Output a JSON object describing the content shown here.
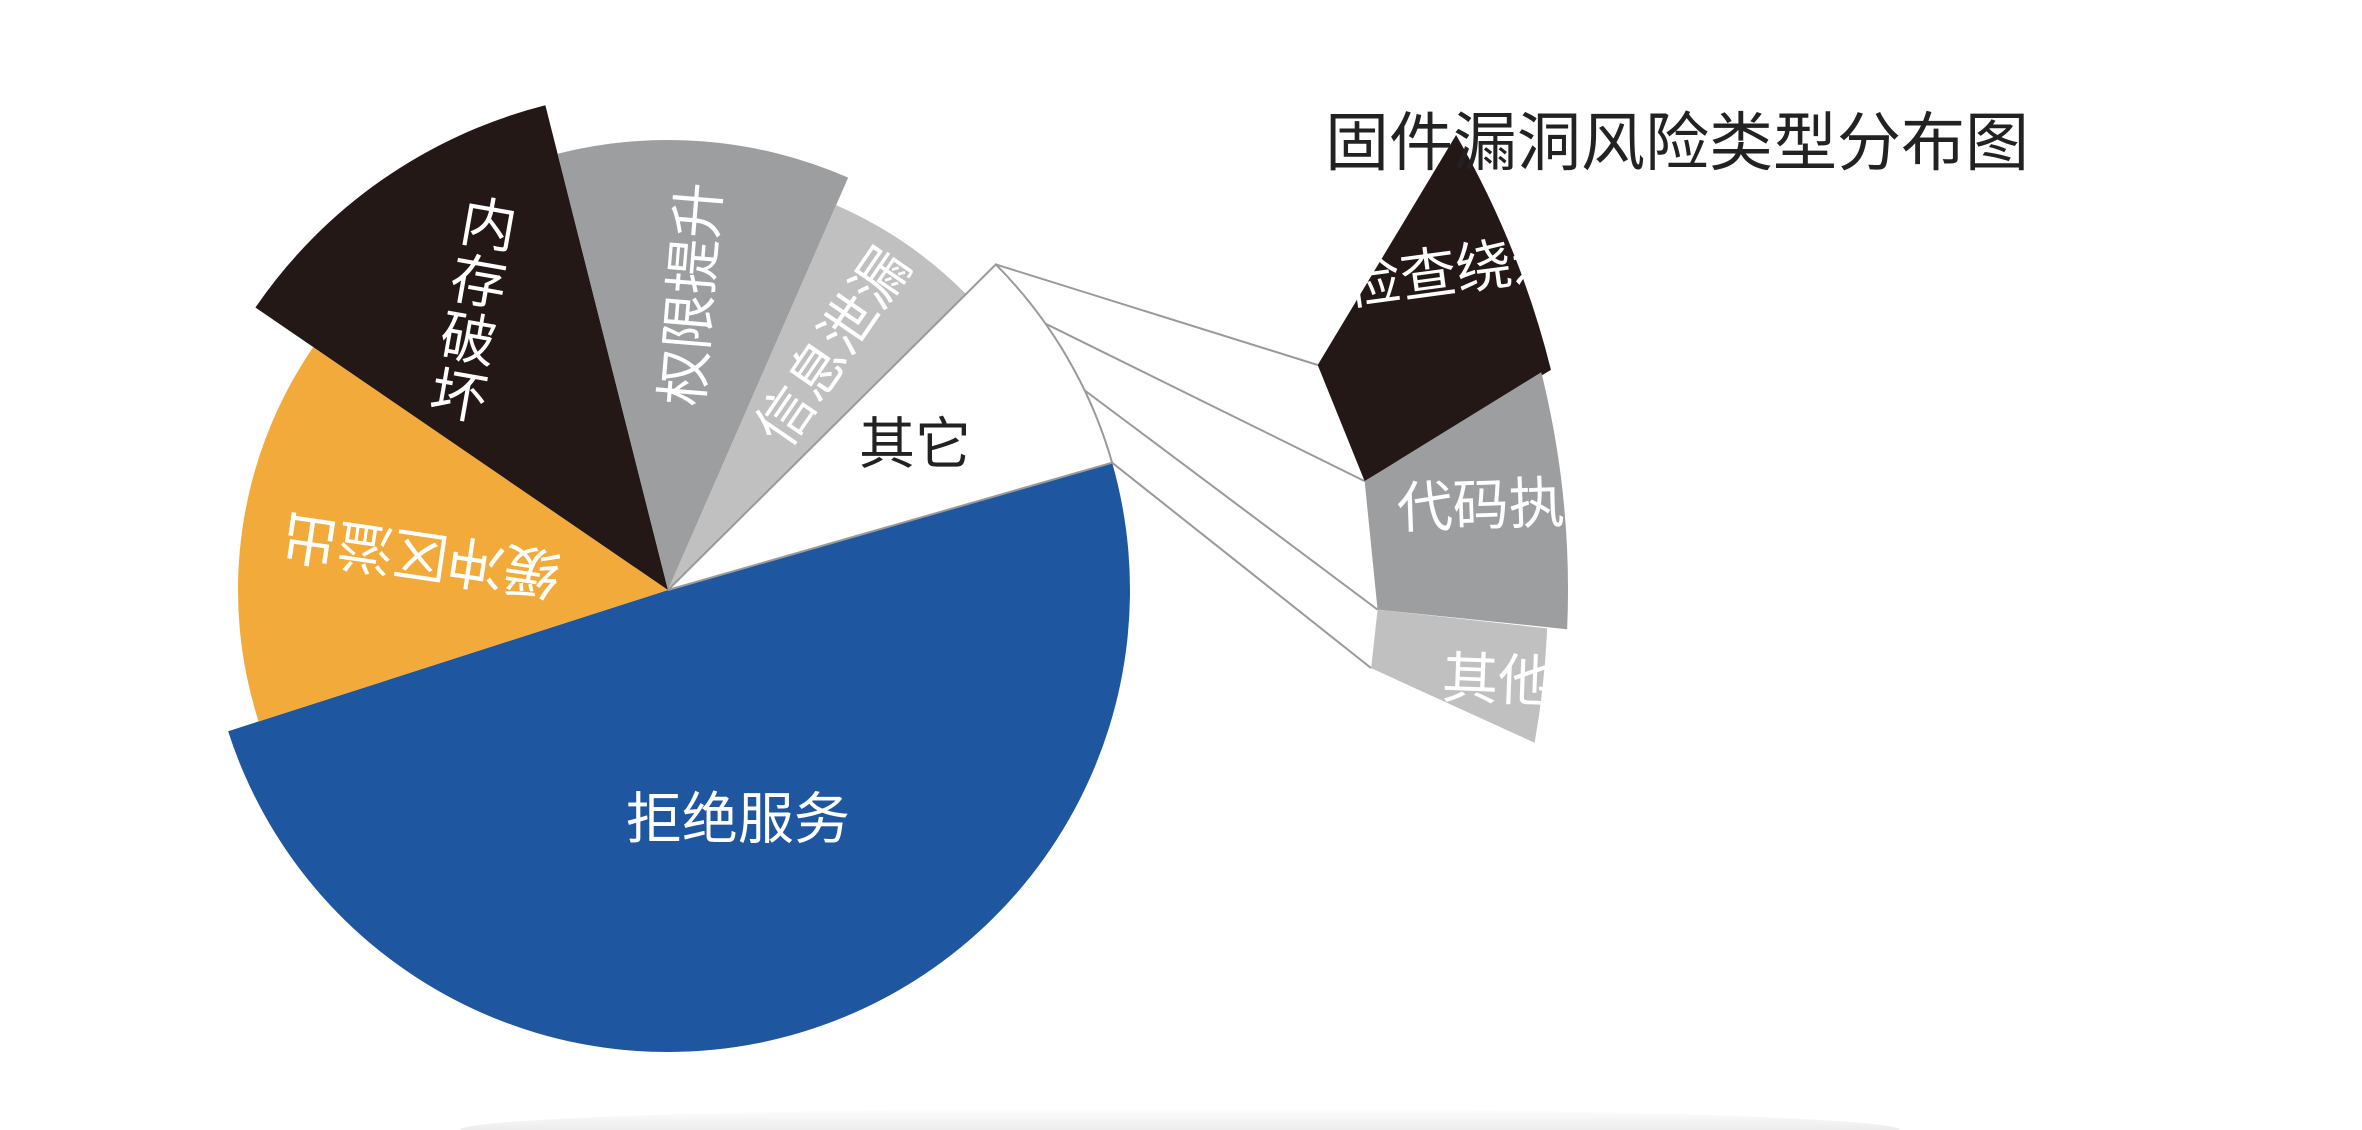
{
  "chart_data": {
    "type": "pie",
    "title": "固件漏洞风险类型分布图",
    "slices": [
      {
        "label": "拒绝服务",
        "value": 49.5,
        "color": "#1e56a0",
        "text_color": "#ffffff"
      },
      {
        "label": "缓冲区溢出",
        "value": 14.5,
        "color": "#f2ab3b",
        "text_color": "#ffffff"
      },
      {
        "label": "内存破坏",
        "value": 11.5,
        "color": "#231816",
        "text_color": "#ffffff"
      },
      {
        "label": "权限提升",
        "value": 10.5,
        "color": "#9d9ea0",
        "text_color": "#ffffff"
      },
      {
        "label": "信息泄漏",
        "value": 6.0,
        "color": "#c0c0c0",
        "text_color": "#ffffff"
      },
      {
        "label": "其它",
        "value": 8.0,
        "color": "#ffffff",
        "text_color": "#222222"
      }
    ],
    "breakout": {
      "of": "其它",
      "segments": [
        {
          "label": "检查绕过",
          "value": 3.2,
          "color": "#231816",
          "text_color": "#ffffff"
        },
        {
          "label": "代码执行",
          "value": 3.3,
          "color": "#9d9ea0",
          "text_color": "#ffffff"
        },
        {
          "label": "其他",
          "value": 1.5,
          "color": "#c0c0c0",
          "text_color": "#ffffff"
        }
      ]
    }
  }
}
